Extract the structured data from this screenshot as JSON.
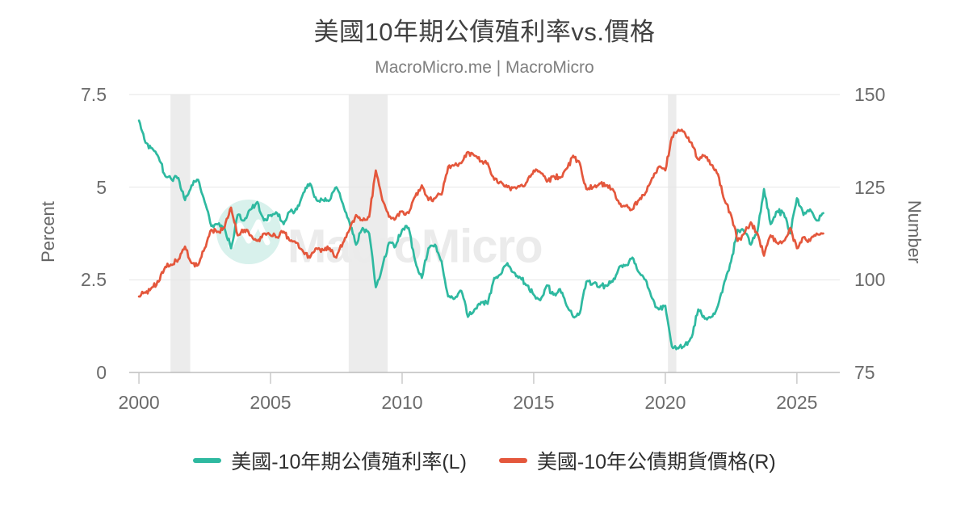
{
  "page": {
    "title": "美國10年期公債殖利率vs.價格",
    "subtitle": "MacroMicro.me | MacroMicro"
  },
  "axes": {
    "left": {
      "title": "Percent",
      "ticks": [
        "7.5",
        "5",
        "2.5",
        "0"
      ]
    },
    "right": {
      "title": "Number",
      "ticks": [
        "150",
        "125",
        "100",
        "75"
      ]
    },
    "x": {
      "ticks": [
        "2000",
        "2005",
        "2010",
        "2015",
        "2020",
        "2025"
      ]
    }
  },
  "legend": [
    {
      "label": "美國-10年期公債殖利率(L)",
      "color": "#2eb9a0"
    },
    {
      "label": "美國-10年公債期貨價格(R)",
      "color": "#e4573c"
    }
  ],
  "watermark": {
    "text": "MacroMicro",
    "logo": "macromicro-logo",
    "circle_color": "#d8f1ec",
    "text_color": "#ebebeb"
  },
  "colors": {
    "series_yield": "#2eb9a0",
    "series_price": "#e4573c",
    "grid": "#e6e6e6",
    "axis_line": "#9e9e9e",
    "tick_mark": "#c9c9c9",
    "recession_band": "#ececec"
  },
  "chart_data": {
    "type": "line",
    "title": "美國10年期公債殖利率vs.價格",
    "subtitle": "MacroMicro.me | MacroMicro",
    "grid": true,
    "legend_position": "bottom",
    "x_domain": [
      1999.63,
      2026.63
    ],
    "x_tick_values": [
      2000,
      2005,
      2010,
      2015,
      2020,
      2025
    ],
    "y_left": {
      "label": "Percent",
      "range": [
        0,
        7.5
      ],
      "ticks": [
        0,
        2.5,
        5,
        7.5
      ]
    },
    "y_right": {
      "label": "Number",
      "range": [
        75,
        150
      ],
      "ticks": [
        75,
        100,
        125,
        150
      ]
    },
    "recession_bands": [
      [
        2001.2,
        2001.95
      ],
      [
        2007.97,
        2009.45
      ],
      [
        2020.1,
        2020.42
      ]
    ],
    "x_start": 2000,
    "x_step": 0.25,
    "series": [
      {
        "name": "美國-10年期公債殖利率(L)",
        "axis": "left",
        "color": "#2eb9a0",
        "values": [
          6.8,
          6.2,
          6.05,
          5.8,
          5.3,
          5.2,
          5.25,
          4.65,
          5.05,
          5.2,
          4.6,
          3.95,
          4.0,
          3.9,
          3.35,
          4.25,
          4.1,
          4.4,
          4.6,
          4.1,
          4.25,
          4.3,
          4.0,
          4.35,
          4.4,
          4.85,
          5.1,
          4.65,
          4.65,
          4.65,
          5.0,
          4.55,
          4.05,
          3.45,
          3.9,
          3.75,
          2.3,
          2.85,
          3.5,
          3.4,
          3.85,
          3.9,
          3.0,
          2.55,
          3.35,
          3.45,
          3.0,
          2.05,
          2.0,
          2.2,
          1.5,
          1.7,
          1.9,
          1.85,
          2.55,
          2.65,
          2.95,
          2.7,
          2.55,
          2.35,
          2.1,
          1.95,
          2.35,
          2.1,
          2.25,
          1.8,
          1.5,
          1.6,
          2.45,
          2.4,
          2.3,
          2.35,
          2.45,
          2.85,
          2.9,
          3.1,
          2.7,
          2.5,
          2.0,
          1.7,
          1.8,
          0.7,
          0.65,
          0.75,
          0.95,
          1.7,
          1.45,
          1.5,
          1.8,
          2.45,
          3.0,
          3.85,
          3.8,
          3.45,
          3.8,
          4.95,
          4.0,
          4.35,
          4.3,
          3.75,
          4.7,
          4.25,
          4.4,
          4.1,
          4.3
        ]
      },
      {
        "name": "美國-10年公債期貨價格(R)",
        "axis": "right",
        "color": "#e4573c",
        "values": [
          95.5,
          96.5,
          98.0,
          99.5,
          103.5,
          104.0,
          105.5,
          109.0,
          104.5,
          104.0,
          108.5,
          113.5,
          113.0,
          114.0,
          119.5,
          112.0,
          113.5,
          112.0,
          110.5,
          112.5,
          112.0,
          111.5,
          113.0,
          110.5,
          110.0,
          107.5,
          106.0,
          108.5,
          108.0,
          108.5,
          106.0,
          110.0,
          113.5,
          117.5,
          116.0,
          117.0,
          129.5,
          121.5,
          117.0,
          116.5,
          118.5,
          118.0,
          122.5,
          125.5,
          121.5,
          122.0,
          123.0,
          130.5,
          131.0,
          131.5,
          134.5,
          133.5,
          132.0,
          131.5,
          127.0,
          126.5,
          125.0,
          125.0,
          125.5,
          126.5,
          129.5,
          129.0,
          126.5,
          128.0,
          127.5,
          130.0,
          133.5,
          131.5,
          124.5,
          125.0,
          126.0,
          125.5,
          124.5,
          120.5,
          120.0,
          119.0,
          121.5,
          123.5,
          127.5,
          130.5,
          129.5,
          138.5,
          140.5,
          139.5,
          137.0,
          132.5,
          133.5,
          131.0,
          128.5,
          121.5,
          117.5,
          110.5,
          112.5,
          115.5,
          112.5,
          106.5,
          112.0,
          110.0,
          110.5,
          114.0,
          108.5,
          111.5,
          110.5,
          112.5,
          112.5
        ]
      }
    ]
  }
}
